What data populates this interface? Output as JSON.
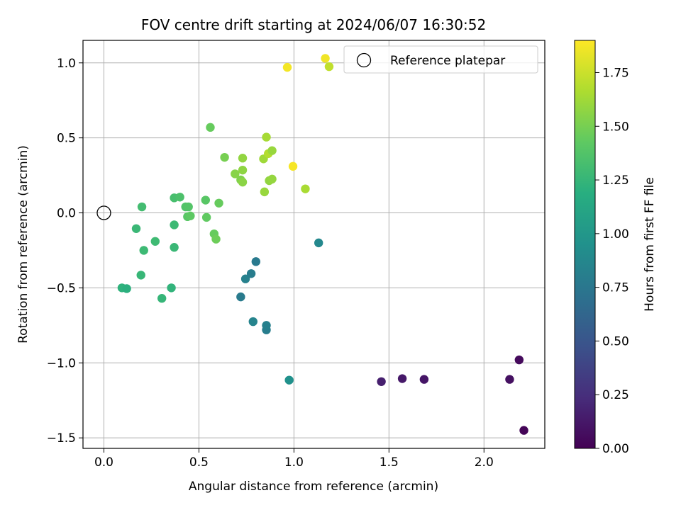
{
  "chart_data": {
    "type": "scatter",
    "title": "FOV centre drift starting at 2024/06/07 16:30:52",
    "xlabel": "Angular distance from reference (arcmin)",
    "ylabel": "Rotation from reference (arcmin)",
    "xlim": [
      -0.11,
      2.32
    ],
    "ylim": [
      -1.57,
      1.15
    ],
    "x_ticks": [
      0.0,
      0.5,
      1.0,
      1.5,
      2.0
    ],
    "x_tick_labels": [
      "0.0",
      "0.5",
      "1.0",
      "1.5",
      "2.0"
    ],
    "y_ticks": [
      -1.5,
      -1.0,
      -0.5,
      0.0,
      0.5,
      1.0
    ],
    "y_tick_labels": [
      "−1.5",
      "−1.0",
      "−0.5",
      "0.0",
      "0.5",
      "1.0"
    ],
    "grid": true,
    "legend": {
      "placement": "top-right",
      "entries": [
        {
          "label": "Reference platepar",
          "marker": "open-circle"
        }
      ]
    },
    "colormap": "viridis",
    "colorbar": {
      "label": "Hours from first FF file",
      "range": [
        0.0,
        1.9
      ],
      "ticks": [
        0.0,
        0.25,
        0.5,
        0.75,
        1.0,
        1.25,
        1.5,
        1.75
      ],
      "tick_labels": [
        "0.00",
        "0.25",
        "0.50",
        "0.75",
        "1.00",
        "1.25",
        "1.50",
        "1.75"
      ]
    },
    "reference_point": {
      "x": 0.0,
      "y": 0.0
    },
    "points": [
      {
        "x": 2.21,
        "y": -1.45,
        "c": 0.02
      },
      {
        "x": 2.185,
        "y": -0.98,
        "c": 0.05
      },
      {
        "x": 2.135,
        "y": -1.11,
        "c": 0.08
      },
      {
        "x": 1.685,
        "y": -1.11,
        "c": 0.11
      },
      {
        "x": 1.57,
        "y": -1.105,
        "c": 0.13
      },
      {
        "x": 1.46,
        "y": -1.125,
        "c": 0.16
      },
      {
        "x": 0.975,
        "y": -1.115,
        "c": 0.95
      },
      {
        "x": 0.855,
        "y": -0.78,
        "c": 0.8
      },
      {
        "x": 0.855,
        "y": -0.75,
        "c": 0.82
      },
      {
        "x": 0.785,
        "y": -0.725,
        "c": 0.85
      },
      {
        "x": 0.72,
        "y": -0.56,
        "c": 0.78
      },
      {
        "x": 0.745,
        "y": -0.44,
        "c": 0.83
      },
      {
        "x": 0.775,
        "y": -0.405,
        "c": 0.8
      },
      {
        "x": 0.8,
        "y": -0.325,
        "c": 0.77
      },
      {
        "x": 1.13,
        "y": -0.2,
        "c": 0.88
      },
      {
        "x": 0.095,
        "y": -0.5,
        "c": 1.22
      },
      {
        "x": 0.12,
        "y": -0.505,
        "c": 1.2
      },
      {
        "x": 0.305,
        "y": -0.57,
        "c": 1.25
      },
      {
        "x": 0.355,
        "y": -0.5,
        "c": 1.23
      },
      {
        "x": 0.195,
        "y": -0.415,
        "c": 1.26
      },
      {
        "x": 0.21,
        "y": -0.25,
        "c": 1.28
      },
      {
        "x": 0.27,
        "y": -0.19,
        "c": 1.29
      },
      {
        "x": 0.37,
        "y": -0.23,
        "c": 1.27
      },
      {
        "x": 0.37,
        "y": -0.08,
        "c": 1.28
      },
      {
        "x": 0.17,
        "y": -0.105,
        "c": 1.27
      },
      {
        "x": 0.2,
        "y": 0.04,
        "c": 1.31
      },
      {
        "x": 0.37,
        "y": 0.1,
        "c": 1.33
      },
      {
        "x": 0.4,
        "y": 0.105,
        "c": 1.35
      },
      {
        "x": 0.43,
        "y": 0.04,
        "c": 1.37
      },
      {
        "x": 0.445,
        "y": 0.04,
        "c": 1.38
      },
      {
        "x": 0.44,
        "y": -0.025,
        "c": 1.4
      },
      {
        "x": 0.455,
        "y": -0.02,
        "c": 1.42
      },
      {
        "x": 0.535,
        "y": 0.085,
        "c": 1.4
      },
      {
        "x": 0.54,
        "y": -0.03,
        "c": 1.43
      },
      {
        "x": 0.58,
        "y": -0.14,
        "c": 1.45
      },
      {
        "x": 0.59,
        "y": -0.175,
        "c": 1.47
      },
      {
        "x": 0.605,
        "y": 0.065,
        "c": 1.45
      },
      {
        "x": 0.56,
        "y": 0.57,
        "c": 1.45
      },
      {
        "x": 0.635,
        "y": 0.37,
        "c": 1.5
      },
      {
        "x": 0.69,
        "y": 0.26,
        "c": 1.55
      },
      {
        "x": 0.72,
        "y": 0.22,
        "c": 1.53
      },
      {
        "x": 0.73,
        "y": 0.205,
        "c": 1.56
      },
      {
        "x": 0.73,
        "y": 0.285,
        "c": 1.57
      },
      {
        "x": 0.73,
        "y": 0.365,
        "c": 1.58
      },
      {
        "x": 0.84,
        "y": 0.36,
        "c": 1.62
      },
      {
        "x": 0.855,
        "y": 0.505,
        "c": 1.64
      },
      {
        "x": 0.865,
        "y": 0.395,
        "c": 1.68
      },
      {
        "x": 0.885,
        "y": 0.415,
        "c": 1.6
      },
      {
        "x": 0.87,
        "y": 0.215,
        "c": 1.58
      },
      {
        "x": 0.885,
        "y": 0.225,
        "c": 1.59
      },
      {
        "x": 0.845,
        "y": 0.14,
        "c": 1.6
      },
      {
        "x": 1.06,
        "y": 0.16,
        "c": 1.65
      },
      {
        "x": 0.995,
        "y": 0.31,
        "c": 1.88
      },
      {
        "x": 0.965,
        "y": 0.97,
        "c": 1.87
      },
      {
        "x": 1.165,
        "y": 1.03,
        "c": 1.86
      },
      {
        "x": 1.185,
        "y": 0.975,
        "c": 1.72
      }
    ]
  }
}
